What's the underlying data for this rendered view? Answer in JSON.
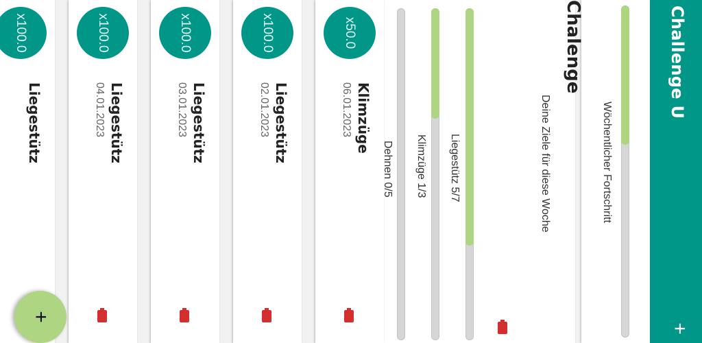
{
  "app": {
    "title": "Challenge U",
    "add_label": "+"
  },
  "weekly_progress": {
    "label": "Wöchentlicher Fortschritt",
    "progress": 0.42
  },
  "goals": {
    "title": "Chalenge",
    "subtitle": "Deine Ziele für diese Woche",
    "items": [
      {
        "label": "Liegestütz 5/7",
        "progress": 0.714
      },
      {
        "label": "Klimzüge 1/3",
        "progress": 0.333
      },
      {
        "label": "Dehnen 0/5",
        "progress": 0.0
      }
    ]
  },
  "entries": [
    {
      "badge": "x50.0",
      "name": "Klimzüge",
      "date": "06.01.2023"
    },
    {
      "badge": "x100.0",
      "name": "Liegestütz",
      "date": "02.01.2023"
    },
    {
      "badge": "x100.0",
      "name": "Liegestütz",
      "date": "03.01.2023"
    },
    {
      "badge": "x100.0",
      "name": "Liegestütz",
      "date": "04.01.2023"
    },
    {
      "badge": "x100.0",
      "name": "Liegestütz",
      "date": ""
    }
  ],
  "fab": {
    "label": "+"
  },
  "colors": {
    "primary": "#009688",
    "accent": "#aed581",
    "danger": "#d32f2f"
  }
}
